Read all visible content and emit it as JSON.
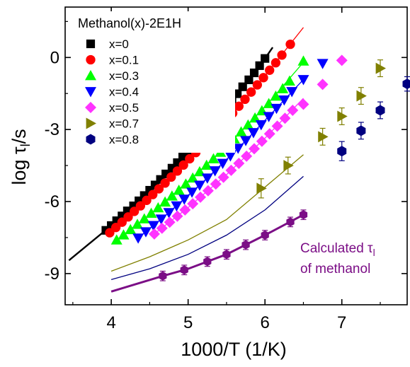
{
  "chart_data": {
    "type": "scatter",
    "title": "",
    "xlabel": "1000/T (1/K)",
    "ylabel_main": "log τ",
    "ylabel_sub": "l",
    "ylabel_suffix": "/s",
    "xlim": [
      3.4,
      7.85
    ],
    "ylim": [
      -10.3,
      2.1
    ],
    "x_ticks": [
      4,
      5,
      6,
      7
    ],
    "x_tick_labels": [
      "4",
      "5",
      "6",
      "7"
    ],
    "y_ticks": [
      0,
      -3,
      -6,
      -9
    ],
    "y_tick_labels": [
      "0",
      "-3",
      "-6",
      "-9"
    ],
    "grid": false,
    "legend_title": "Methanol(x)-2E1H",
    "legend_position": "top-left",
    "series": [
      {
        "name": "x=0",
        "marker": "square",
        "color": "#000000",
        "x": [
          3.93,
          4.0,
          4.07,
          4.14,
          4.21,
          4.29,
          4.36,
          4.43,
          4.5,
          4.57,
          4.64,
          4.71,
          4.79,
          4.86,
          4.93,
          5.0,
          5.07,
          5.14,
          5.21,
          5.29,
          5.36,
          5.43,
          5.5,
          5.57,
          5.64,
          5.71,
          5.79,
          5.86,
          5.93,
          6.0
        ],
        "y": [
          -7.2,
          -7.0,
          -6.8,
          -6.6,
          -6.39,
          -6.18,
          -5.97,
          -5.75,
          -5.53,
          -5.31,
          -5.08,
          -4.85,
          -4.61,
          -4.38,
          -4.13,
          -3.89,
          -3.64,
          -3.39,
          -3.13,
          -2.87,
          -2.61,
          -2.34,
          -2.06,
          -1.79,
          -1.51,
          -1.22,
          -0.93,
          -0.64,
          -0.34,
          -0.04
        ]
      },
      {
        "name": "x=0.1",
        "marker": "circle",
        "color": "#ff0000",
        "x": [
          3.98,
          4.06,
          4.14,
          4.22,
          4.3,
          4.38,
          4.46,
          4.54,
          4.62,
          4.7,
          4.78,
          4.86,
          4.94,
          5.02,
          5.1,
          5.18,
          5.26,
          5.34,
          5.42,
          5.5,
          5.58,
          5.66,
          5.74,
          5.82,
          5.9,
          5.98,
          6.06,
          6.14,
          6.22,
          6.33
        ],
        "y": [
          -7.3,
          -7.08,
          -6.86,
          -6.64,
          -6.41,
          -6.18,
          -5.95,
          -5.71,
          -5.47,
          -5.23,
          -4.98,
          -4.73,
          -4.48,
          -4.22,
          -3.96,
          -3.7,
          -3.43,
          -3.16,
          -2.88,
          -2.6,
          -2.32,
          -2.03,
          -1.74,
          -1.44,
          -1.14,
          -0.84,
          -0.53,
          -0.22,
          0.1,
          0.55
        ]
      },
      {
        "name": "x=0.3",
        "marker": "triangle-up",
        "color": "#00ff00",
        "x": [
          4.07,
          4.16,
          4.25,
          4.34,
          4.43,
          4.52,
          4.61,
          4.7,
          4.79,
          4.88,
          4.97,
          5.06,
          5.15,
          5.24,
          5.33,
          5.42,
          5.51,
          5.6,
          5.69,
          5.78,
          5.87,
          5.96,
          6.05,
          6.14,
          6.23,
          6.32,
          6.5
        ],
        "y": [
          -7.6,
          -7.39,
          -7.17,
          -6.95,
          -6.72,
          -6.49,
          -6.26,
          -6.02,
          -5.77,
          -5.53,
          -5.27,
          -5.02,
          -4.76,
          -4.49,
          -4.22,
          -3.95,
          -3.67,
          -3.39,
          -3.1,
          -2.81,
          -2.52,
          -2.22,
          -1.92,
          -1.61,
          -1.3,
          -0.98,
          -0.15
        ]
      },
      {
        "name": "x=0.4",
        "marker": "triangle-down",
        "color": "#0000ff",
        "x": [
          4.35,
          4.45,
          4.55,
          4.65,
          4.75,
          4.85,
          4.95,
          5.05,
          5.15,
          5.25,
          5.35,
          5.45,
          5.55,
          5.65,
          5.75,
          5.85,
          5.95,
          6.05,
          6.15,
          6.25,
          6.35,
          6.5,
          6.75
        ],
        "y": [
          -7.52,
          -7.26,
          -7.0,
          -6.73,
          -6.46,
          -6.18,
          -5.9,
          -5.61,
          -5.32,
          -5.02,
          -4.72,
          -4.41,
          -4.1,
          -3.78,
          -3.46,
          -3.13,
          -2.8,
          -2.46,
          -2.12,
          -1.77,
          -1.42,
          -0.92,
          -0.25
        ]
      },
      {
        "name": "x=0.5",
        "marker": "diamond",
        "color": "#ff33ff",
        "x": [
          4.56,
          4.66,
          4.76,
          4.86,
          4.96,
          5.06,
          5.16,
          5.26,
          5.36,
          5.46,
          5.56,
          5.66,
          5.76,
          5.86,
          5.96,
          6.06,
          6.16,
          6.26,
          6.36,
          6.5,
          6.75,
          7.0
        ],
        "y": [
          -7.35,
          -7.11,
          -6.86,
          -6.61,
          -6.35,
          -6.09,
          -5.82,
          -5.55,
          -5.27,
          -4.99,
          -4.7,
          -4.41,
          -4.11,
          -3.8,
          -3.49,
          -3.18,
          -2.86,
          -2.53,
          -2.2,
          -1.95,
          -1.12,
          -0.12
        ]
      },
      {
        "name": "x=0.7",
        "marker": "triangle-right",
        "color": "#808000",
        "error_bars": true,
        "x": [
          5.95,
          6.3,
          6.75,
          7.0,
          7.25,
          7.5
        ],
        "y": [
          -5.45,
          -4.5,
          -3.3,
          -2.45,
          -1.6,
          -0.45
        ],
        "yerr": [
          0.4,
          0.35,
          0.35,
          0.35,
          0.35,
          0.35
        ]
      },
      {
        "name": "x=0.8",
        "marker": "hexagon",
        "color": "#000080",
        "error_bars": true,
        "x": [
          7.0,
          7.25,
          7.5,
          7.85
        ],
        "y": [
          -3.9,
          -3.05,
          -2.2,
          -1.1
        ],
        "yerr": [
          0.4,
          0.35,
          0.35,
          0.3
        ]
      }
    ],
    "calculated_methanol": {
      "color": "#7b0e86",
      "x": [
        4.67,
        4.95,
        5.25,
        5.5,
        5.75,
        6.0,
        6.33,
        6.5
      ],
      "y": [
        -9.1,
        -8.85,
        -8.5,
        -8.2,
        -7.8,
        -7.4,
        -6.85,
        -6.55
      ],
      "yerr": [
        0.2,
        0.2,
        0.2,
        0.2,
        0.2,
        0.2,
        0.2,
        0.2
      ]
    },
    "fit_lines": [
      {
        "color": "#000000",
        "x": [
          3.45,
          4.0,
          4.5,
          5.0,
          5.5,
          6.0,
          6.1
        ],
        "y": [
          -8.45,
          -7.0,
          -5.55,
          -3.9,
          -2.06,
          -0.04,
          0.42
        ]
      },
      {
        "color": "#ff0000",
        "x": [
          3.98,
          4.5,
          5.0,
          5.5,
          6.0,
          6.5
        ],
        "y": [
          -7.3,
          -5.83,
          -4.35,
          -2.6,
          -0.76,
          1.25
        ]
      },
      {
        "color": "#00ff00",
        "x": [
          4.07,
          4.5,
          5.0,
          5.5,
          6.0,
          6.5
        ],
        "y": [
          -7.6,
          -6.55,
          -5.15,
          -3.72,
          -2.06,
          -0.2
        ]
      },
      {
        "color": "#0000ff",
        "x": [
          4.35,
          4.75,
          5.25,
          5.75,
          6.25,
          6.5
        ],
        "y": [
          -7.52,
          -6.46,
          -5.02,
          -3.46,
          -1.77,
          -0.92
        ]
      },
      {
        "color": "#ff33ff",
        "x": [
          4.56,
          5.0,
          5.5,
          6.0,
          6.5
        ],
        "y": [
          -7.35,
          -6.25,
          -4.88,
          -3.36,
          -1.7
        ]
      },
      {
        "color": "#808000",
        "x": [
          4.0,
          4.5,
          5.0,
          5.5,
          6.0,
          6.5
        ],
        "y": [
          -8.9,
          -8.3,
          -7.6,
          -6.75,
          -5.4,
          -4.05
        ]
      },
      {
        "color": "#000080",
        "x": [
          4.0,
          4.5,
          5.0,
          5.5,
          6.0,
          6.5
        ],
        "y": [
          -9.25,
          -8.8,
          -8.2,
          -7.4,
          -6.35,
          -4.95
        ]
      },
      {
        "color": "#7b0e86",
        "thick": true,
        "x": [
          4.0,
          4.67,
          5.0,
          5.5,
          6.0,
          6.5
        ],
        "y": [
          -9.75,
          -9.1,
          -8.8,
          -8.2,
          -7.4,
          -6.55
        ]
      }
    ],
    "annotation_line1_main": "Calculated τ",
    "annotation_line1_sub": "l",
    "annotation_line2": "of methanol"
  }
}
